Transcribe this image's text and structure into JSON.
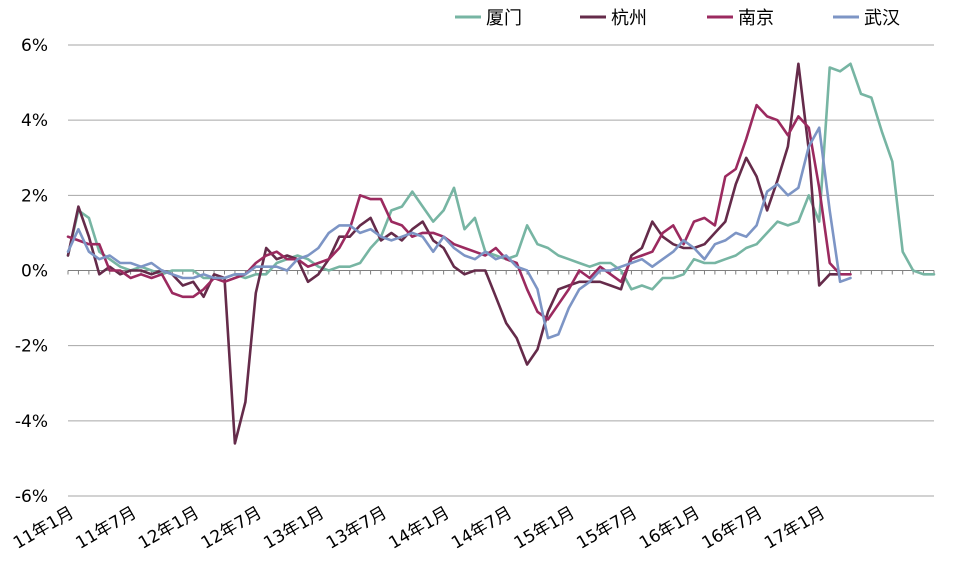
{
  "chart_data": {
    "type": "line",
    "title": "",
    "xlabel": "",
    "ylabel": "",
    "ylim": [
      -6,
      6
    ],
    "y_ticks": [
      -6,
      -4,
      -2,
      0,
      2,
      4,
      6
    ],
    "y_tick_labels": [
      "-6%",
      "-4%",
      "-2%",
      "0%",
      "2%",
      "4%",
      "6%"
    ],
    "x_tick_labels": [
      "11年1月",
      "11年7月",
      "12年1月",
      "12年7月",
      "13年1月",
      "13年7月",
      "14年1月",
      "14年7月",
      "15年1月",
      "15年7月",
      "16年1月",
      "16年7月",
      "17年1月"
    ],
    "x_tick_every": 6,
    "grid": "horizontal",
    "legend_position": "top",
    "unit": "%",
    "series": [
      {
        "name": "厦门",
        "color": "#77b5a3",
        "values": [
          0.4,
          1.6,
          1.4,
          0.5,
          0.3,
          0.1,
          0.0,
          0.1,
          0.0,
          -0.1,
          0.0,
          0.0,
          0.0,
          -0.2,
          -0.2,
          -0.2,
          -0.1,
          -0.2,
          -0.1,
          -0.1,
          0.2,
          0.3,
          0.4,
          0.3,
          0.1,
          0.0,
          0.1,
          0.1,
          0.2,
          0.6,
          0.9,
          1.6,
          1.7,
          2.1,
          1.7,
          1.3,
          1.6,
          2.2,
          1.1,
          1.4,
          0.5,
          0.4,
          0.3,
          0.4,
          1.2,
          0.7,
          0.6,
          0.4,
          0.3,
          0.2,
          0.1,
          0.2,
          0.2,
          0.0,
          -0.5,
          -0.4,
          -0.5,
          -0.2,
          -0.2,
          -0.1,
          0.3,
          0.2,
          0.2,
          0.3,
          0.4,
          0.6,
          0.7,
          1.0,
          1.3,
          1.2,
          1.3,
          2.0,
          1.3,
          5.4,
          5.3,
          5.5,
          4.7,
          4.6,
          3.7,
          2.9,
          0.5,
          0.0,
          -0.1,
          -0.1
        ]
      },
      {
        "name": "杭州",
        "color": "#652b4a",
        "values": [
          0.4,
          1.7,
          0.9,
          -0.1,
          0.1,
          -0.1,
          0.0,
          0.0,
          -0.1,
          0.0,
          -0.1,
          -0.4,
          -0.3,
          -0.7,
          -0.1,
          -0.2,
          -4.6,
          -3.5,
          -0.6,
          0.6,
          0.3,
          0.4,
          0.3,
          -0.3,
          -0.1,
          0.3,
          0.9,
          0.9,
          1.2,
          1.4,
          0.8,
          1.0,
          0.8,
          1.1,
          1.3,
          0.8,
          0.6,
          0.1,
          -0.1,
          0.0,
          0.0,
          -0.7,
          -1.4,
          -1.8,
          -2.5,
          -2.1,
          -1.1,
          -0.5,
          -0.4,
          -0.3,
          -0.3,
          -0.3,
          -0.4,
          -0.5,
          0.4,
          0.6,
          1.3,
          0.9,
          0.7,
          0.6,
          0.6,
          0.7,
          1.0,
          1.3,
          2.3,
          3.0,
          2.5,
          1.6,
          2.4,
          3.3,
          5.5,
          3.2,
          -0.4,
          -0.1,
          -0.1
        ]
      },
      {
        "name": "南京",
        "color": "#9b2a5f",
        "values": [
          0.9,
          0.8,
          0.7,
          0.7,
          0.0,
          0.0,
          -0.2,
          -0.1,
          -0.2,
          -0.1,
          -0.6,
          -0.7,
          -0.7,
          -0.5,
          -0.2,
          -0.3,
          -0.2,
          -0.1,
          0.2,
          0.4,
          0.5,
          0.3,
          0.3,
          0.1,
          0.2,
          0.3,
          0.6,
          1.1,
          2.0,
          1.9,
          1.9,
          1.3,
          1.2,
          0.9,
          1.0,
          1.0,
          0.9,
          0.7,
          0.6,
          0.5,
          0.4,
          0.6,
          0.3,
          0.2,
          -0.5,
          -1.1,
          -1.3,
          -0.9,
          -0.5,
          0.0,
          -0.2,
          0.1,
          -0.1,
          -0.3,
          0.3,
          0.4,
          0.5,
          1.0,
          1.2,
          0.7,
          1.3,
          1.4,
          1.2,
          2.5,
          2.7,
          3.5,
          4.4,
          4.1,
          4.0,
          3.6,
          4.1,
          3.8,
          2.2,
          0.2,
          -0.1,
          -0.1
        ]
      },
      {
        "name": "武汉",
        "color": "#7d95c5",
        "values": [
          0.5,
          1.1,
          0.5,
          0.3,
          0.4,
          0.2,
          0.2,
          0.1,
          0.2,
          0.0,
          -0.1,
          -0.2,
          -0.2,
          -0.1,
          -0.2,
          -0.2,
          -0.1,
          -0.1,
          0.1,
          0.1,
          0.1,
          0.0,
          0.3,
          0.4,
          0.6,
          1.0,
          1.2,
          1.2,
          1.0,
          1.1,
          0.9,
          0.8,
          0.9,
          1.0,
          0.9,
          0.5,
          0.9,
          0.6,
          0.4,
          0.3,
          0.5,
          0.3,
          0.4,
          0.1,
          0.0,
          -0.5,
          -1.8,
          -1.7,
          -1.0,
          -0.5,
          -0.3,
          0.0,
          0.0,
          0.1,
          0.2,
          0.3,
          0.1,
          0.3,
          0.5,
          0.8,
          0.6,
          0.3,
          0.7,
          0.8,
          1.0,
          0.9,
          1.2,
          2.1,
          2.3,
          2.0,
          2.2,
          3.3,
          3.8,
          1.6,
          -0.3,
          -0.2
        ]
      }
    ]
  }
}
